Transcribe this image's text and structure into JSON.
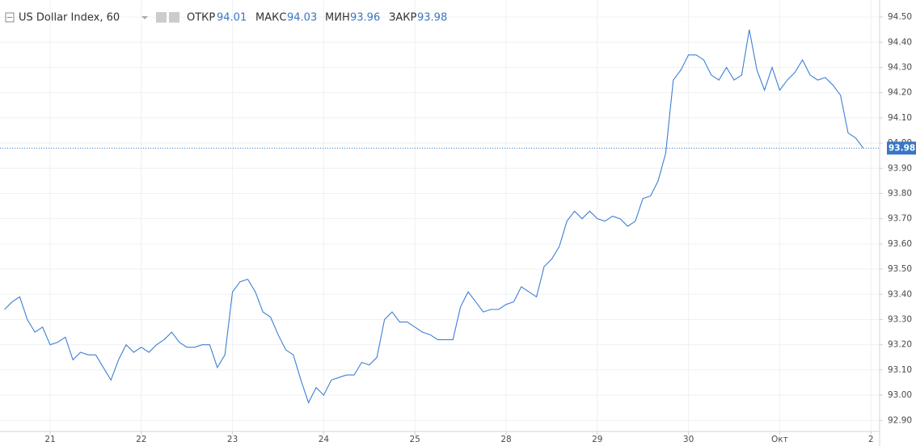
{
  "chart_data": {
    "type": "line",
    "title": "US Dollar Index, 60",
    "color": "#3d7fd4",
    "legend": [
      {
        "label": "ОТКР",
        "value": 94.01
      },
      {
        "label": "МАКС",
        "value": 94.03
      },
      {
        "label": "МИН",
        "value": 93.96
      },
      {
        "label": "ЗАКР",
        "value": 93.98
      }
    ],
    "categories": [
      null,
      null,
      null,
      null,
      null,
      null,
      "21",
      null,
      null,
      null,
      null,
      null,
      null,
      null,
      null,
      null,
      null,
      null,
      "22",
      null,
      null,
      null,
      null,
      null,
      null,
      null,
      null,
      null,
      null,
      null,
      "23",
      null,
      null,
      null,
      null,
      null,
      null,
      null,
      null,
      null,
      null,
      null,
      "24",
      null,
      null,
      null,
      null,
      null,
      null,
      null,
      null,
      null,
      null,
      null,
      "25",
      null,
      null,
      null,
      null,
      null,
      null,
      null,
      null,
      null,
      null,
      null,
      "28",
      null,
      null,
      null,
      null,
      null,
      null,
      null,
      null,
      null,
      null,
      null,
      "29",
      null,
      null,
      null,
      null,
      null,
      null,
      null,
      null,
      null,
      null,
      null,
      "30",
      null,
      null,
      null,
      null,
      null,
      null,
      null,
      null,
      null,
      null,
      null,
      "Окт",
      null,
      null,
      null,
      null,
      null,
      null,
      null,
      null,
      null,
      null,
      null,
      "2"
    ],
    "values": [
      93.34,
      93.37,
      93.39,
      93.3,
      93.25,
      93.27,
      93.2,
      93.21,
      93.23,
      93.14,
      93.17,
      93.16,
      93.16,
      93.11,
      93.06,
      93.14,
      93.2,
      93.17,
      93.19,
      93.17,
      93.2,
      93.22,
      93.25,
      93.21,
      93.19,
      93.19,
      93.2,
      93.2,
      93.11,
      93.16,
      93.41,
      93.45,
      93.46,
      93.41,
      93.33,
      93.31,
      93.24,
      93.18,
      93.16,
      93.06,
      92.97,
      93.03,
      93.0,
      93.06,
      93.07,
      93.08,
      93.08,
      93.13,
      93.12,
      93.15,
      93.3,
      93.33,
      93.29,
      93.29,
      93.27,
      93.25,
      93.24,
      93.22,
      93.22,
      93.22,
      93.35,
      93.41,
      93.37,
      93.33,
      93.34,
      93.34,
      93.36,
      93.37,
      93.43,
      93.41,
      93.39,
      93.51,
      93.54,
      93.59,
      93.69,
      93.73,
      93.7,
      93.73,
      93.7,
      93.69,
      93.71,
      93.7,
      93.67,
      93.69,
      93.78,
      93.79,
      93.85,
      93.96,
      94.25,
      94.29,
      94.35,
      94.35,
      94.33,
      94.27,
      94.25,
      94.3,
      94.25,
      94.27,
      94.45,
      94.29,
      94.21,
      94.3,
      94.21,
      94.25,
      94.28,
      94.33,
      94.27,
      94.25,
      94.26,
      94.23,
      94.19,
      94.04,
      94.02,
      93.98,
      null
    ],
    "ylim": [
      92.856,
      94.558
    ],
    "yticks": [
      {
        "value": 92.9,
        "label": "92.90"
      },
      {
        "value": 93.0,
        "label": "93.00"
      },
      {
        "value": 93.1,
        "label": "93.10"
      },
      {
        "value": 93.2,
        "label": "93.20"
      },
      {
        "value": 93.3,
        "label": "93.30"
      },
      {
        "value": 93.4,
        "label": "93.40"
      },
      {
        "value": 93.5,
        "label": "93.50"
      },
      {
        "value": 93.6,
        "label": "93.60"
      },
      {
        "value": 93.7,
        "label": "93.70"
      },
      {
        "value": 93.8,
        "label": "93.80"
      },
      {
        "value": 93.9,
        "label": "93.90"
      },
      {
        "value": 94.0,
        "label": "94.00"
      },
      {
        "value": 94.1,
        "label": "94.10"
      },
      {
        "value": 94.2,
        "label": "94.20"
      },
      {
        "value": 94.3,
        "label": "94.30"
      },
      {
        "value": 94.4,
        "label": "94.40"
      },
      {
        "value": 94.5,
        "label": "94.50"
      }
    ],
    "grid": true
  }
}
